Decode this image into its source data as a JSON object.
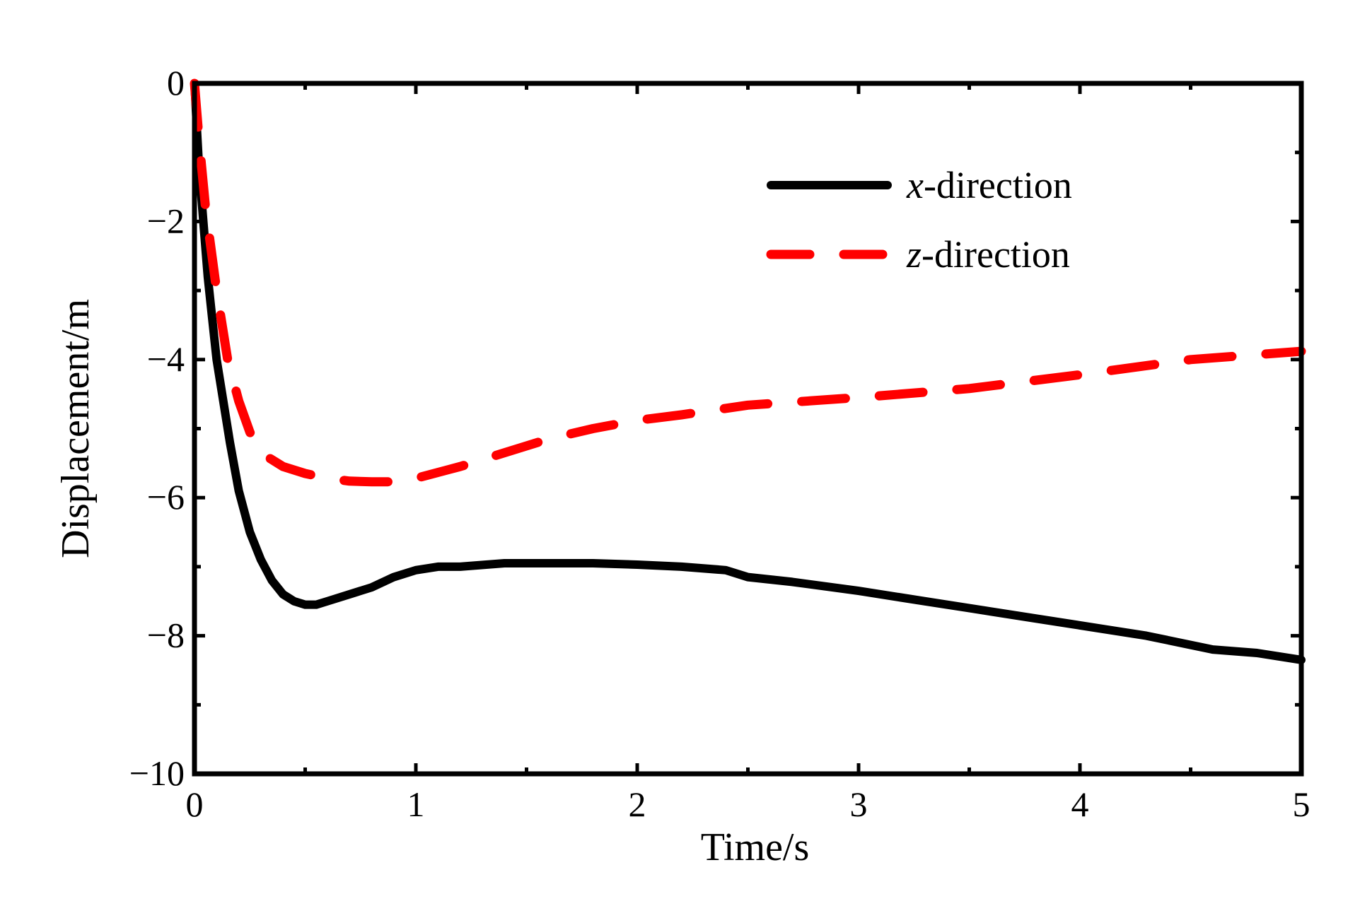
{
  "chart_data": {
    "type": "line",
    "title": "",
    "xlabel": "Time/s",
    "ylabel": "Displacement/m",
    "xlim": [
      0,
      5
    ],
    "ylim": [
      -10,
      0
    ],
    "xticks": [
      0,
      1,
      2,
      3,
      4,
      5
    ],
    "yticks": [
      0,
      -2,
      -4,
      -6,
      -8,
      -10
    ],
    "xtick_labels": [
      "0",
      "1",
      "2",
      "3",
      "4",
      "5"
    ],
    "ytick_labels": [
      "0",
      "−2",
      "−4",
      "−6",
      "−8",
      "−10"
    ],
    "grid": false,
    "legend_position": "top-right",
    "series": [
      {
        "name": "x-direction",
        "legend_var": "x",
        "legend_suffix": "-direction",
        "style": "solid",
        "color": "#000000",
        "x": [
          0,
          0.01,
          0.02,
          0.04,
          0.06,
          0.08,
          0.1,
          0.13,
          0.16,
          0.2,
          0.25,
          0.3,
          0.35,
          0.4,
          0.45,
          0.5,
          0.55,
          0.6,
          0.7,
          0.8,
          0.9,
          1.0,
          1.1,
          1.2,
          1.4,
          1.6,
          1.8,
          2.0,
          2.2,
          2.4,
          2.5,
          2.7,
          3.0,
          3.3,
          3.5,
          3.8,
          4.0,
          4.3,
          4.6,
          4.8,
          5.0
        ],
        "y": [
          0,
          -0.6,
          -1.2,
          -2.0,
          -2.8,
          -3.4,
          -4.0,
          -4.6,
          -5.2,
          -5.9,
          -6.5,
          -6.9,
          -7.2,
          -7.4,
          -7.5,
          -7.55,
          -7.55,
          -7.5,
          -7.4,
          -7.3,
          -7.15,
          -7.05,
          -7.0,
          -7.0,
          -6.95,
          -6.95,
          -6.95,
          -6.97,
          -7.0,
          -7.05,
          -7.15,
          -7.22,
          -7.35,
          -7.5,
          -7.6,
          -7.75,
          -7.85,
          -8.0,
          -8.2,
          -8.25,
          -8.35
        ]
      },
      {
        "name": "z-direction",
        "legend_var": "z",
        "legend_suffix": "-direction",
        "style": "dashed",
        "color": "#ff0000",
        "x": [
          0,
          0.02,
          0.05,
          0.1,
          0.15,
          0.2,
          0.25,
          0.3,
          0.4,
          0.5,
          0.6,
          0.7,
          0.8,
          0.9,
          1.0,
          1.2,
          1.4,
          1.6,
          1.8,
          2.0,
          2.2,
          2.5,
          3.0,
          3.5,
          4.0,
          4.5,
          5.0
        ],
        "y": [
          0,
          -0.8,
          -1.8,
          -3.0,
          -4.0,
          -4.6,
          -5.05,
          -5.35,
          -5.55,
          -5.65,
          -5.72,
          -5.76,
          -5.77,
          -5.77,
          -5.72,
          -5.55,
          -5.35,
          -5.15,
          -5.0,
          -4.88,
          -4.8,
          -4.66,
          -4.55,
          -4.42,
          -4.22,
          -4.0,
          -3.88
        ]
      }
    ]
  }
}
